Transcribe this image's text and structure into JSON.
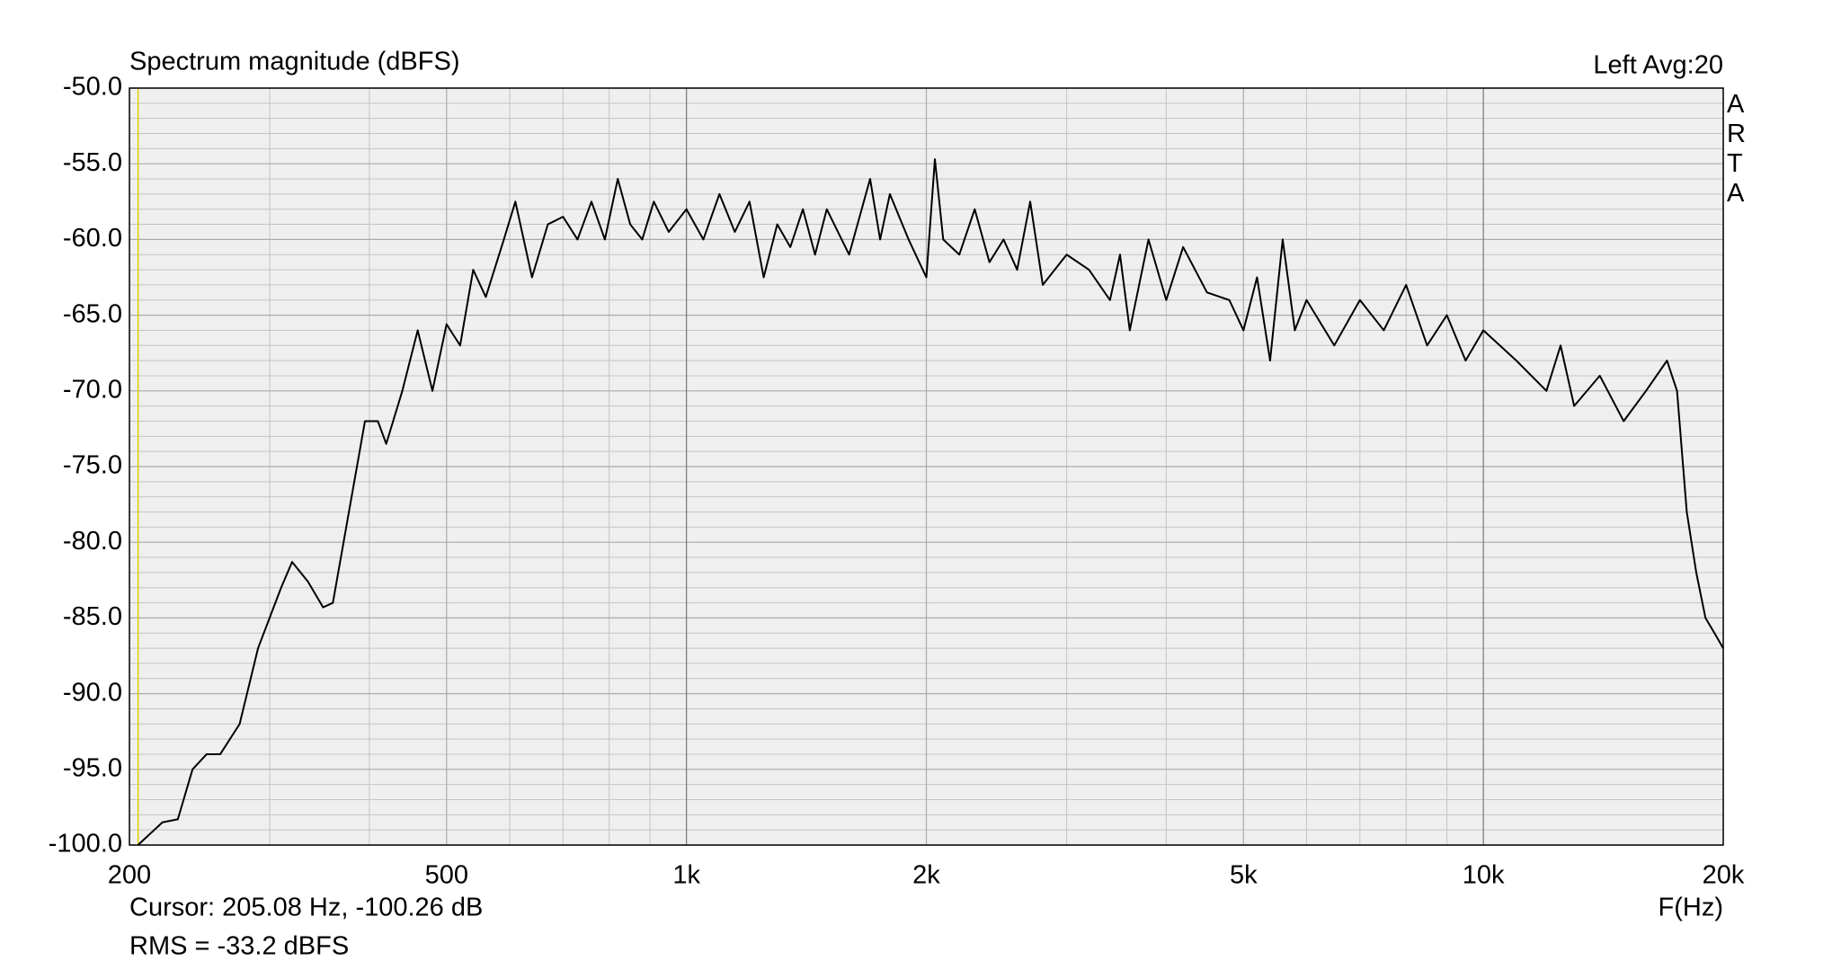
{
  "chart_data": {
    "type": "line",
    "title": "Spectrum magnitude (dBFS)",
    "channel_label": "Left  Avg:20",
    "watermark": "ARTA",
    "x_label": "F(Hz)",
    "cursor_text": "Cursor: 205.08 Hz, -100.26 dB",
    "cursor": {
      "x": 205.08,
      "color": "#e0d000"
    },
    "rms_text": "RMS =  -33.2 dBFS",
    "rms_color": "#cc0000",
    "color": "#000000",
    "log_x": true,
    "grid": true,
    "xlim": [
      200,
      20000
    ],
    "ylim": [
      -100,
      -50
    ],
    "xticks": [
      200,
      500,
      {
        "value": 1000,
        "label": "1k"
      },
      {
        "value": 2000,
        "label": "2k"
      },
      {
        "value": 5000,
        "label": "5k"
      },
      {
        "value": 10000,
        "label": "10k"
      },
      {
        "value": 20000,
        "label": "20k"
      }
    ],
    "xminorticks": [
      300,
      400,
      600,
      700,
      800,
      900,
      3000,
      4000,
      6000,
      7000,
      8000,
      9000
    ],
    "yticks": [
      {
        "value": -50,
        "label": "-50.0"
      },
      {
        "value": -55,
        "label": "-55.0"
      },
      {
        "value": -60,
        "label": "-60.0"
      },
      {
        "value": -65,
        "label": "-65.0"
      },
      {
        "value": -70,
        "label": "-70.0"
      },
      {
        "value": -75,
        "label": "-75.0"
      },
      {
        "value": -80,
        "label": "-80.0"
      },
      {
        "value": -85,
        "label": "-85.0"
      },
      {
        "value": -90,
        "label": "-90.0"
      },
      {
        "value": -95,
        "label": "-95.0"
      },
      {
        "value": -100,
        "label": "-100.0"
      }
    ],
    "yminorticks": [
      -51,
      -52,
      -53,
      -54,
      -56,
      -57,
      -58,
      -59,
      -61,
      -62,
      -63,
      -64,
      -66,
      -67,
      -68,
      -69,
      -71,
      -72,
      -73,
      -74,
      -76,
      -77,
      -78,
      -79,
      -81,
      -82,
      -83,
      -84,
      -86,
      -87,
      -88,
      -89,
      -91,
      -92,
      -93,
      -94,
      -96,
      -97,
      -98,
      -99
    ],
    "x": [
      205,
      220,
      230,
      240,
      250,
      260,
      275,
      290,
      310,
      320,
      335,
      350,
      360,
      380,
      395,
      410,
      420,
      440,
      460,
      480,
      500,
      520,
      540,
      560,
      590,
      610,
      640,
      670,
      700,
      730,
      760,
      790,
      820,
      850,
      880,
      910,
      950,
      1000,
      1050,
      1100,
      1150,
      1200,
      1250,
      1300,
      1350,
      1400,
      1450,
      1500,
      1600,
      1700,
      1750,
      1800,
      1900,
      2000,
      2050,
      2100,
      2200,
      2300,
      2400,
      2500,
      2600,
      2700,
      2800,
      3000,
      3200,
      3400,
      3500,
      3600,
      3800,
      4000,
      4200,
      4500,
      4800,
      5000,
      5200,
      5400,
      5600,
      5800,
      6000,
      6500,
      7000,
      7500,
      8000,
      8500,
      9000,
      9500,
      10000,
      11000,
      12000,
      12500,
      13000,
      14000,
      15000,
      16000,
      17000,
      17500,
      18000,
      18500,
      19000,
      19500,
      20000
    ],
    "values": [
      -100,
      -98.5,
      -98.3,
      -95,
      -94,
      -94,
      -92,
      -87,
      -83,
      -81.3,
      -82.6,
      -84.3,
      -84,
      -77,
      -72,
      -72,
      -73.5,
      -70,
      -66,
      -70,
      -65.6,
      -67,
      -62,
      -63.8,
      -60,
      -57.5,
      -62.5,
      -59,
      -58.5,
      -60,
      -57.5,
      -60,
      -56,
      -59,
      -60,
      -57.5,
      -59.5,
      -58,
      -60,
      -57,
      -59.5,
      -57.5,
      -62.5,
      -59,
      -60.5,
      -58,
      -61,
      -58,
      -61,
      -56,
      -60,
      -57,
      -60,
      -62.5,
      -54.7,
      -60,
      -61,
      -58,
      -61.5,
      -60,
      -62,
      -57.5,
      -63,
      -61,
      -62,
      -64,
      -61,
      -66,
      -60,
      -64,
      -60.5,
      -63.5,
      -64,
      -66,
      -62.5,
      -68,
      -60,
      -66,
      -64,
      -67,
      -64,
      -66,
      -63,
      -67,
      -65,
      -68,
      -66,
      -68,
      -70,
      -67,
      -71,
      -69,
      -72,
      -70,
      -68,
      -70,
      -78,
      -82,
      -85,
      -86,
      -87
    ]
  }
}
